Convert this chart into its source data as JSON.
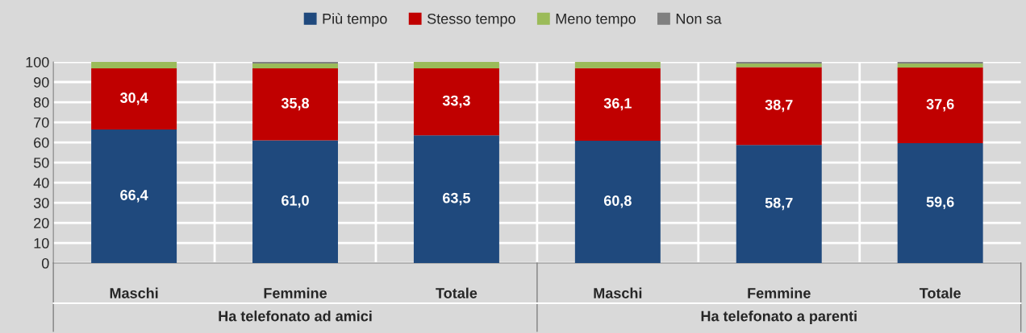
{
  "chart_data": {
    "type": "bar",
    "stacked": true,
    "categories": [
      "Maschi",
      "Femmine",
      "Totale",
      "Maschi",
      "Femmine",
      "Totale"
    ],
    "series": [
      {
        "name": "Più tempo",
        "color": "#1f497d",
        "values": [
          66.4,
          61.0,
          63.5,
          60.8,
          58.7,
          59.6
        ],
        "value_labels": [
          "66,4",
          "61,0",
          "63,5",
          "60,8",
          "58,7",
          "59,6"
        ]
      },
      {
        "name": "Stesso tempo",
        "color": "#c00000",
        "values": [
          30.4,
          35.8,
          33.3,
          36.1,
          38.7,
          37.6
        ],
        "value_labels": [
          "30,4",
          "35,8",
          "33,3",
          "36,1",
          "38,7",
          "37,6"
        ]
      },
      {
        "name": "Meno tempo",
        "color": "#9bbb59",
        "values": [
          3.2,
          2.4,
          3.2,
          3.1,
          1.8,
          2.0
        ]
      },
      {
        "name": "Non sa",
        "color": "#808080",
        "values": [
          0.0,
          0.8,
          0.0,
          0.0,
          0.8,
          0.8
        ]
      }
    ],
    "annotations": [
      "Ha telefonato ad amici",
      "Ha telefonato a parenti"
    ],
    "ylim": [
      0,
      100
    ],
    "yticks": [
      0,
      10,
      20,
      30,
      40,
      50,
      60,
      70,
      80,
      90,
      100
    ],
    "grid": true,
    "legend": "top"
  }
}
